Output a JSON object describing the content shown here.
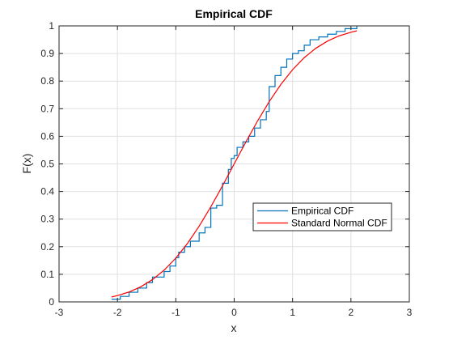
{
  "chart_data": {
    "type": "line",
    "title": "Empirical CDF",
    "xlabel": "x",
    "ylabel": "F(x)",
    "xlim": [
      -3,
      3
    ],
    "ylim": [
      0,
      1
    ],
    "xticks": [
      -3,
      -2,
      -1,
      0,
      1,
      2,
      3
    ],
    "yticks": [
      0,
      0.1,
      0.2,
      0.3,
      0.4,
      0.5,
      0.6,
      0.7,
      0.8,
      0.9,
      1
    ],
    "xtick_labels": [
      "-3",
      "-2",
      "-1",
      "0",
      "1",
      "2",
      "3"
    ],
    "ytick_labels": [
      "0",
      "0.1",
      "0.2",
      "0.3",
      "0.4",
      "0.5",
      "0.6",
      "0.7",
      "0.8",
      "0.9",
      "1"
    ],
    "grid": true,
    "legend_position": "right-middle",
    "series": [
      {
        "name": "Empirical CDF",
        "kind": "stairs",
        "color": "#0072BD",
        "x": [
          -2.1,
          -1.95,
          -1.8,
          -1.65,
          -1.5,
          -1.4,
          -1.2,
          -1.1,
          -1.0,
          -0.95,
          -0.85,
          -0.75,
          -0.6,
          -0.5,
          -0.4,
          -0.3,
          -0.2,
          -0.1,
          -0.05,
          0.0,
          0.05,
          0.15,
          0.25,
          0.35,
          0.45,
          0.55,
          0.6,
          0.7,
          0.8,
          0.9,
          1.0,
          1.1,
          1.2,
          1.3,
          1.45,
          1.6,
          1.75,
          1.9,
          2.1
        ],
        "y": [
          0.01,
          0.02,
          0.035,
          0.05,
          0.07,
          0.09,
          0.11,
          0.13,
          0.16,
          0.18,
          0.2,
          0.22,
          0.25,
          0.27,
          0.34,
          0.35,
          0.43,
          0.48,
          0.52,
          0.53,
          0.56,
          0.58,
          0.6,
          0.63,
          0.66,
          0.69,
          0.78,
          0.82,
          0.85,
          0.88,
          0.9,
          0.91,
          0.93,
          0.95,
          0.96,
          0.97,
          0.98,
          0.99,
          1.0
        ]
      },
      {
        "name": "Standard Normal CDF",
        "kind": "line",
        "color": "#FF0000",
        "x": [
          -2.1,
          -2.0,
          -1.8,
          -1.6,
          -1.4,
          -1.2,
          -1.0,
          -0.8,
          -0.6,
          -0.4,
          -0.2,
          0.0,
          0.2,
          0.4,
          0.6,
          0.8,
          1.0,
          1.2,
          1.4,
          1.6,
          1.8,
          2.0,
          2.1
        ],
        "y": [
          0.0179,
          0.0228,
          0.0359,
          0.0548,
          0.0808,
          0.1151,
          0.1587,
          0.2119,
          0.2743,
          0.3446,
          0.4207,
          0.5,
          0.5793,
          0.6554,
          0.7257,
          0.7881,
          0.8413,
          0.8849,
          0.9192,
          0.9452,
          0.9641,
          0.9772,
          0.9821
        ]
      }
    ]
  }
}
